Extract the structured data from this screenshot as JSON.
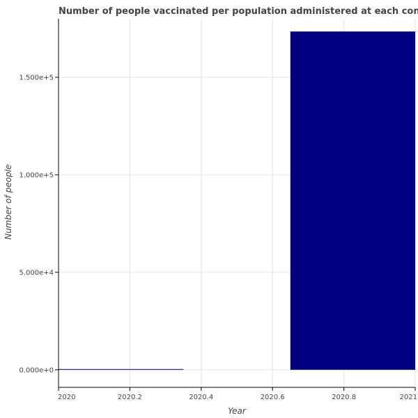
{
  "chart_data": {
    "type": "bar",
    "title": "Number of people vaccinated per population administered at each continent",
    "xlabel": "Year",
    "ylabel": "Number of people",
    "xlim": [
      2020,
      2021
    ],
    "ylim": [
      -9000,
      180000
    ],
    "x_ticks": [
      2020,
      2020.2,
      2020.4,
      2020.6,
      2020.8,
      2021
    ],
    "x_tick_labels": [
      "2020",
      "2020.2",
      "2020.4",
      "2020.6",
      "2020.8",
      "2021"
    ],
    "y_ticks": [
      0,
      50000,
      100000,
      150000
    ],
    "y_tick_labels": [
      "0.000e+0",
      "5.000e+4",
      "1.000e+5",
      "1.500e+5"
    ],
    "grid": true,
    "bars": [
      {
        "x_start": 2020,
        "x_end": 2020.35,
        "value": 0
      },
      {
        "x_start": 2020.65,
        "x_end": 2021,
        "value": 173500
      }
    ],
    "bar_color": "#000080"
  }
}
